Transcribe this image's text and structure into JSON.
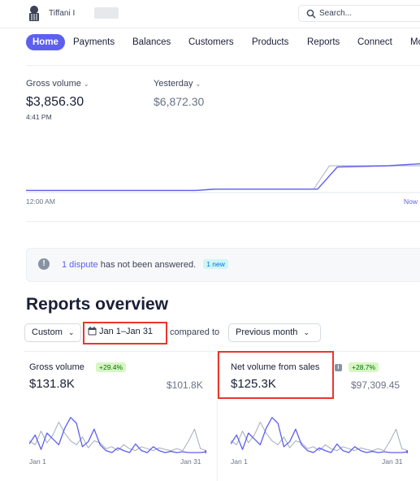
{
  "account": {
    "name": "Tiffani I"
  },
  "search": {
    "placeholder": "Search..."
  },
  "nav": {
    "items": [
      "Home",
      "Payments",
      "Balances",
      "Customers",
      "Products",
      "Reports",
      "Connect",
      "Mo"
    ],
    "active": "Home"
  },
  "today": {
    "gross_label": "Gross volume",
    "gross_value": "$3,856.30",
    "time": "4:41 PM",
    "yesterday_label": "Yesterday",
    "yesterday_value": "$6,872.30",
    "x_start": "12:00 AM",
    "x_end": "Now",
    "series": {
      "today_color": "#5d5fef",
      "yesterday_color": "#b9bfc7",
      "today_points": [
        [
          0,
          0.02
        ],
        [
          0.43,
          0.02
        ],
        [
          0.48,
          0.04
        ],
        [
          0.74,
          0.04
        ],
        [
          0.79,
          0.38
        ],
        [
          0.92,
          0.4
        ],
        [
          1.0,
          0.43
        ]
      ],
      "yesterday_points": [
        [
          0,
          0.02
        ],
        [
          0.44,
          0.02
        ],
        [
          0.47,
          0.04
        ],
        [
          0.73,
          0.04
        ],
        [
          0.77,
          0.4
        ],
        [
          1.0,
          0.4
        ]
      ]
    }
  },
  "banner": {
    "link": "1 dispute",
    "text": "has not been answered.",
    "badge": "1 new"
  },
  "reports": {
    "title": "Reports overview",
    "filter_custom": "Custom",
    "date_range": "Jan 1–Jan 31",
    "compared_to": "compared to",
    "compare_period": "Previous month",
    "cards": [
      {
        "label": "Gross volume",
        "change": "+29.4%",
        "value": "$131.8K",
        "compare_value": "$101.8K",
        "x_start": "Jan 1",
        "x_end": "Jan 31",
        "current": [
          0.22,
          0.45,
          0.08,
          0.5,
          0.35,
          0.2,
          0.62,
          0.9,
          0.75,
          0.15,
          0.28,
          0.6,
          0.2,
          0.05,
          0.0,
          0.12,
          0.05,
          0.0,
          0.22,
          0.05,
          0.0,
          0.15,
          0.05,
          0.0,
          0.03,
          0.0,
          0.02,
          0.0,
          0.0,
          0.0,
          0.02
        ],
        "previous": [
          0.3,
          0.2,
          0.55,
          0.25,
          0.45,
          0.78,
          0.5,
          0.3,
          0.2,
          0.4,
          0.12,
          0.3,
          0.25,
          0.1,
          0.15,
          0.05,
          0.2,
          0.1,
          0.05,
          0.15,
          0.1,
          0.05,
          0.12,
          0.08,
          0.05,
          0.1,
          0.05,
          0.3,
          0.6,
          0.1,
          0.05
        ]
      },
      {
        "label": "Net volume from sales",
        "change": "+28.7%",
        "value": "$125.3K",
        "compare_value": "$97,309.45",
        "x_start": "Jan 1",
        "x_end": "Jan 31",
        "current": [
          0.22,
          0.45,
          0.08,
          0.5,
          0.35,
          0.2,
          0.62,
          0.9,
          0.75,
          0.15,
          0.28,
          0.6,
          0.2,
          0.05,
          0.0,
          0.12,
          0.05,
          0.0,
          0.22,
          0.05,
          0.0,
          0.15,
          0.05,
          0.0,
          0.03,
          0.0,
          0.02,
          0.0,
          0.0,
          0.0,
          0.02
        ],
        "previous": [
          0.3,
          0.2,
          0.55,
          0.25,
          0.45,
          0.78,
          0.5,
          0.3,
          0.2,
          0.4,
          0.12,
          0.3,
          0.25,
          0.1,
          0.15,
          0.05,
          0.2,
          0.1,
          0.05,
          0.15,
          0.1,
          0.05,
          0.12,
          0.08,
          0.05,
          0.1,
          0.05,
          0.3,
          0.6,
          0.1,
          0.05
        ]
      }
    ]
  },
  "colors": {
    "accent": "#5d5fef",
    "highlight": "#e8372c",
    "positive_bg": "#d7f7c2",
    "positive_fg": "#05690d"
  }
}
